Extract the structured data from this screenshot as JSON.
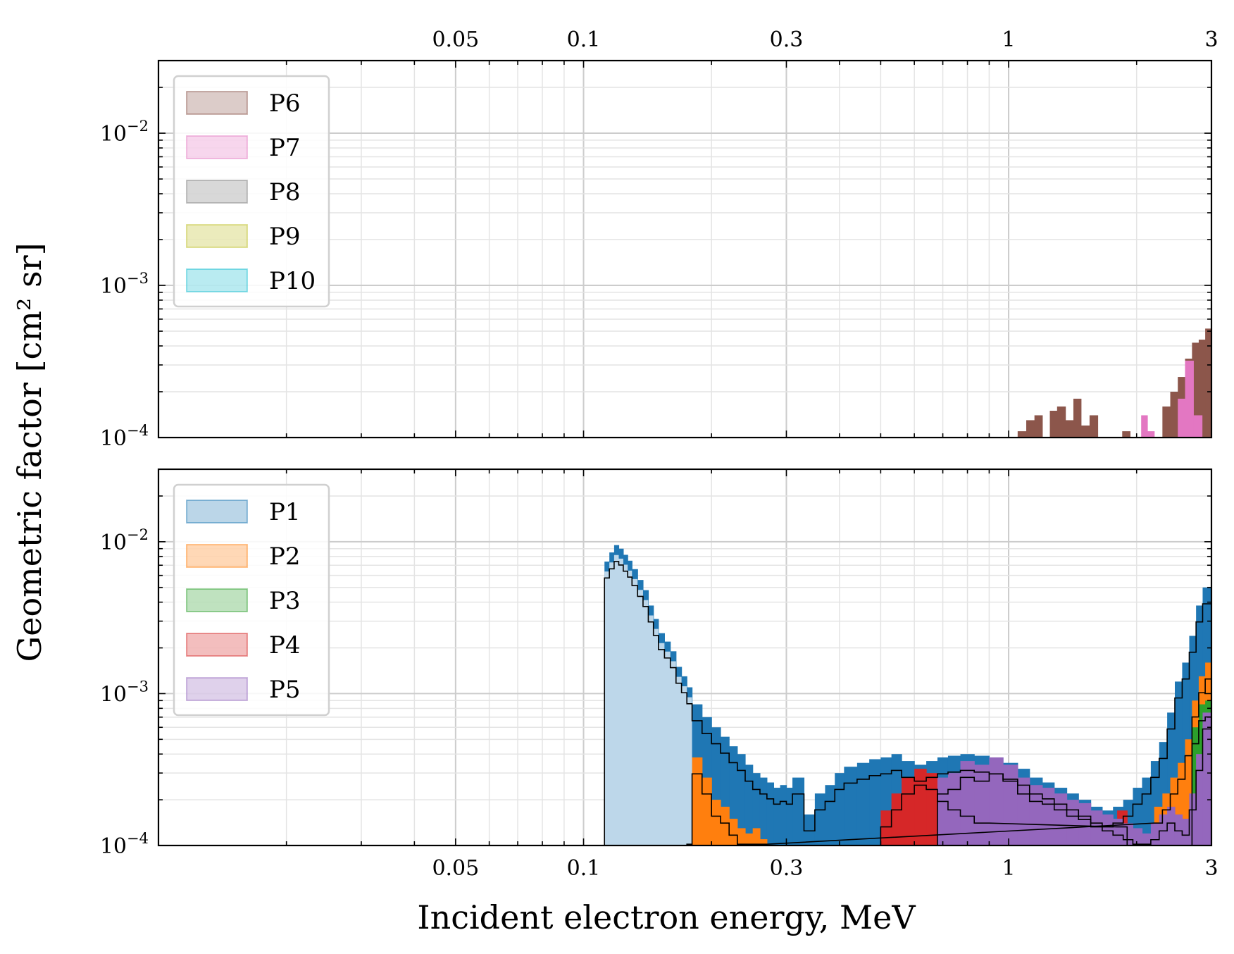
{
  "chart_data": {
    "type": "histogram",
    "ylabel": "Geometric factor [cm² sr]",
    "xlabel": "Incident electron energy, MeV",
    "xscale": "log",
    "yscale": "log",
    "xlim": [
      0.01,
      3
    ],
    "ylim": [
      0.0001,
      0.03
    ],
    "xticks": [
      {
        "value": 0.05,
        "label": "0.05"
      },
      {
        "value": 0.1,
        "label": "0.1"
      },
      {
        "value": 0.3,
        "label": "0.3"
      },
      {
        "value": 1,
        "label": "1"
      },
      {
        "value": 3,
        "label": "3"
      }
    ],
    "yticks": [
      {
        "value": 0.0001,
        "base": "10",
        "exp": "−4"
      },
      {
        "value": 0.001,
        "base": "10",
        "exp": "−3"
      },
      {
        "value": 0.01,
        "base": "10",
        "exp": "−2"
      }
    ],
    "panels": [
      {
        "name": "top",
        "legend": {
          "location": "upper left"
        },
        "series": [
          {
            "name": "P6",
            "color": "#8c564b",
            "step_outline": false,
            "bins": [
              [
                1.05,
                1.1,
                0.00011
              ],
              [
                1.1,
                1.15,
                0.00013
              ],
              [
                1.15,
                1.2,
                0.00014
              ],
              [
                1.25,
                1.3,
                0.00015
              ],
              [
                1.3,
                1.36,
                0.00016
              ],
              [
                1.36,
                1.42,
                0.00013
              ],
              [
                1.42,
                1.48,
                0.00018
              ],
              [
                1.48,
                1.55,
                0.00012
              ],
              [
                1.55,
                1.62,
                0.00014
              ],
              [
                1.85,
                1.93,
                0.00011
              ],
              [
                2.3,
                2.4,
                0.00016
              ],
              [
                2.4,
                2.5,
                0.0002
              ],
              [
                2.5,
                2.6,
                0.00025
              ],
              [
                2.6,
                2.7,
                0.00033
              ],
              [
                2.7,
                2.8,
                0.00042
              ],
              [
                2.8,
                2.9,
                0.00044
              ],
              [
                2.9,
                3.0,
                0.00052
              ]
            ]
          },
          {
            "name": "P7",
            "color": "#e377c2",
            "step_outline": false,
            "bins": [
              [
                2.05,
                2.12,
                0.00014
              ],
              [
                2.12,
                2.2,
                0.00011
              ],
              [
                2.5,
                2.6,
                0.00018
              ],
              [
                2.6,
                2.72,
                0.00032
              ],
              [
                2.72,
                2.85,
                0.00014
              ]
            ]
          },
          {
            "name": "P8",
            "color": "#7f7f7f",
            "step_outline": false,
            "bins": []
          },
          {
            "name": "P9",
            "color": "#bcbd22",
            "step_outline": false,
            "bins": []
          },
          {
            "name": "P10",
            "color": "#17becf",
            "step_outline": false,
            "bins": []
          }
        ]
      },
      {
        "name": "bottom",
        "legend": {
          "location": "upper left"
        },
        "series": [
          {
            "name": "P1",
            "color": "#1f77b4",
            "step_outline": true,
            "bins": [
              [
                0.112,
                0.115,
                0.0074
              ],
              [
                0.115,
                0.118,
                0.0085
              ],
              [
                0.118,
                0.121,
                0.0095
              ],
              [
                0.121,
                0.124,
                0.009
              ],
              [
                0.124,
                0.127,
                0.0082
              ],
              [
                0.127,
                0.13,
                0.0075
              ],
              [
                0.13,
                0.134,
                0.0066
              ],
              [
                0.134,
                0.138,
                0.0056
              ],
              [
                0.138,
                0.142,
                0.0048
              ],
              [
                0.142,
                0.146,
                0.0038
              ],
              [
                0.146,
                0.15,
                0.0031
              ],
              [
                0.15,
                0.155,
                0.0025
              ],
              [
                0.155,
                0.16,
                0.0022
              ],
              [
                0.16,
                0.165,
                0.0019
              ],
              [
                0.165,
                0.17,
                0.0015
              ],
              [
                0.17,
                0.175,
                0.0013
              ],
              [
                0.175,
                0.18,
                0.0011
              ],
              [
                0.18,
                0.19,
                0.00085
              ],
              [
                0.19,
                0.2,
                0.0007
              ],
              [
                0.2,
                0.21,
                0.0006
              ],
              [
                0.21,
                0.22,
                0.00052
              ],
              [
                0.22,
                0.23,
                0.00045
              ],
              [
                0.23,
                0.24,
                0.0004
              ],
              [
                0.24,
                0.25,
                0.00034
              ],
              [
                0.25,
                0.26,
                0.0003
              ],
              [
                0.26,
                0.27,
                0.00028
              ],
              [
                0.27,
                0.28,
                0.00026
              ],
              [
                0.28,
                0.29,
                0.00024
              ],
              [
                0.29,
                0.3,
                0.00025
              ],
              [
                0.3,
                0.31,
                0.00024
              ],
              [
                0.31,
                0.33,
                0.00028
              ],
              [
                0.33,
                0.35,
                0.00016
              ],
              [
                0.35,
                0.37,
                0.00022
              ],
              [
                0.37,
                0.39,
                0.00025
              ],
              [
                0.39,
                0.41,
                0.0003
              ],
              [
                0.41,
                0.44,
                0.00033
              ],
              [
                0.44,
                0.47,
                0.00035
              ],
              [
                0.47,
                0.5,
                0.00037
              ],
              [
                0.5,
                0.53,
                0.00038
              ],
              [
                0.53,
                0.56,
                0.0004
              ],
              [
                0.56,
                0.6,
                0.00036
              ],
              [
                0.6,
                0.64,
                0.00034
              ],
              [
                0.64,
                0.68,
                0.00036
              ],
              [
                0.68,
                0.72,
                0.00038
              ],
              [
                0.72,
                0.77,
                0.00039
              ],
              [
                0.77,
                0.83,
                0.0004
              ],
              [
                0.83,
                0.9,
                0.00039
              ],
              [
                0.9,
                0.97,
                0.00038
              ],
              [
                0.97,
                1.05,
                0.00035
              ],
              [
                1.05,
                1.12,
                0.00032
              ],
              [
                1.12,
                1.2,
                0.00028
              ],
              [
                1.2,
                1.28,
                0.00026
              ],
              [
                1.28,
                1.37,
                0.00024
              ],
              [
                1.37,
                1.46,
                0.00022
              ],
              [
                1.46,
                1.56,
                0.0002
              ],
              [
                1.56,
                1.66,
                0.00018
              ],
              [
                1.66,
                1.76,
                0.00017
              ],
              [
                1.76,
                1.86,
                0.00018
              ],
              [
                1.86,
                1.96,
                0.0002
              ],
              [
                1.96,
                2.06,
                0.00024
              ],
              [
                2.06,
                2.16,
                0.00028
              ],
              [
                2.16,
                2.26,
                0.00036
              ],
              [
                2.26,
                2.36,
                0.00048
              ],
              [
                2.36,
                2.46,
                0.00075
              ],
              [
                2.46,
                2.56,
                0.0012
              ],
              [
                2.56,
                2.66,
                0.0016
              ],
              [
                2.66,
                2.76,
                0.0024
              ],
              [
                2.76,
                2.86,
                0.0038
              ],
              [
                2.86,
                3.0,
                0.005
              ]
            ]
          },
          {
            "name": "P2",
            "color": "#ff7f0e",
            "step_outline": true,
            "bins": [
              [
                0.175,
                0.18,
                0.00012
              ],
              [
                0.18,
                0.19,
                0.00038
              ],
              [
                0.19,
                0.2,
                0.00028
              ],
              [
                0.2,
                0.21,
                0.0002
              ],
              [
                0.21,
                0.22,
                0.00018
              ],
              [
                0.22,
                0.23,
                0.00015
              ],
              [
                0.23,
                0.24,
                0.00013
              ],
              [
                0.24,
                0.25,
                0.00012
              ],
              [
                0.25,
                0.26,
                0.00013
              ],
              [
                0.26,
                0.27,
                0.00011
              ],
              [
                2.2,
                2.3,
                0.00018
              ],
              [
                2.3,
                2.4,
                0.00022
              ],
              [
                2.4,
                2.5,
                0.00028
              ],
              [
                2.5,
                2.6,
                0.00035
              ],
              [
                2.6,
                2.7,
                0.0005
              ],
              [
                2.7,
                2.8,
                0.0009
              ],
              [
                2.8,
                2.9,
                0.0013
              ],
              [
                2.9,
                3.0,
                0.0016
              ]
            ]
          },
          {
            "name": "P3",
            "color": "#2ca02c",
            "step_outline": true,
            "bins": [
              [
                2.7,
                2.8,
                0.0006
              ],
              [
                2.8,
                2.9,
                0.00085
              ],
              [
                2.9,
                3.0,
                0.0009
              ]
            ]
          },
          {
            "name": "P4",
            "color": "#d62728",
            "step_outline": true,
            "bins": [
              [
                0.5,
                0.53,
                0.00017
              ],
              [
                0.53,
                0.56,
                0.00022
              ],
              [
                0.56,
                0.6,
                0.00028
              ],
              [
                0.6,
                0.64,
                0.00032
              ],
              [
                0.64,
                0.68,
                0.0003
              ],
              [
                0.68,
                0.72,
                0.00025
              ],
              [
                0.72,
                0.77,
                0.00022
              ],
              [
                0.77,
                0.83,
                0.0002
              ],
              [
                0.83,
                0.9,
                0.00018
              ],
              [
                1.8,
                1.9,
                0.00017
              ]
            ]
          },
          {
            "name": "P5",
            "color": "#9467bd",
            "step_outline": true,
            "bins": [
              [
                0.68,
                0.72,
                0.00028
              ],
              [
                0.72,
                0.77,
                0.0003
              ],
              [
                0.77,
                0.83,
                0.00036
              ],
              [
                0.83,
                0.9,
                0.00034
              ],
              [
                0.9,
                0.97,
                0.00038
              ],
              [
                0.97,
                1.05,
                0.00034
              ],
              [
                1.05,
                1.12,
                0.00028
              ],
              [
                1.12,
                1.2,
                0.00025
              ],
              [
                1.2,
                1.28,
                0.00024
              ],
              [
                1.28,
                1.37,
                0.00022
              ],
              [
                1.37,
                1.46,
                0.0002
              ],
              [
                1.46,
                1.56,
                0.00019
              ],
              [
                1.56,
                1.66,
                0.00017
              ],
              [
                1.66,
                1.76,
                0.00016
              ],
              [
                1.76,
                1.86,
                0.00015
              ],
              [
                1.86,
                1.96,
                0.00014
              ],
              [
                1.96,
                2.06,
                0.00013
              ],
              [
                2.06,
                2.16,
                0.00012
              ],
              [
                2.16,
                2.26,
                0.00014
              ],
              [
                2.26,
                2.36,
                0.00016
              ],
              [
                2.36,
                2.46,
                0.00018
              ],
              [
                2.46,
                2.56,
                0.00016
              ],
              [
                2.56,
                2.66,
                0.00015
              ],
              [
                2.66,
                2.76,
                0.00022
              ],
              [
                2.76,
                2.86,
                0.0004
              ],
              [
                2.86,
                3.0,
                0.00075
              ]
            ]
          }
        ]
      }
    ]
  }
}
